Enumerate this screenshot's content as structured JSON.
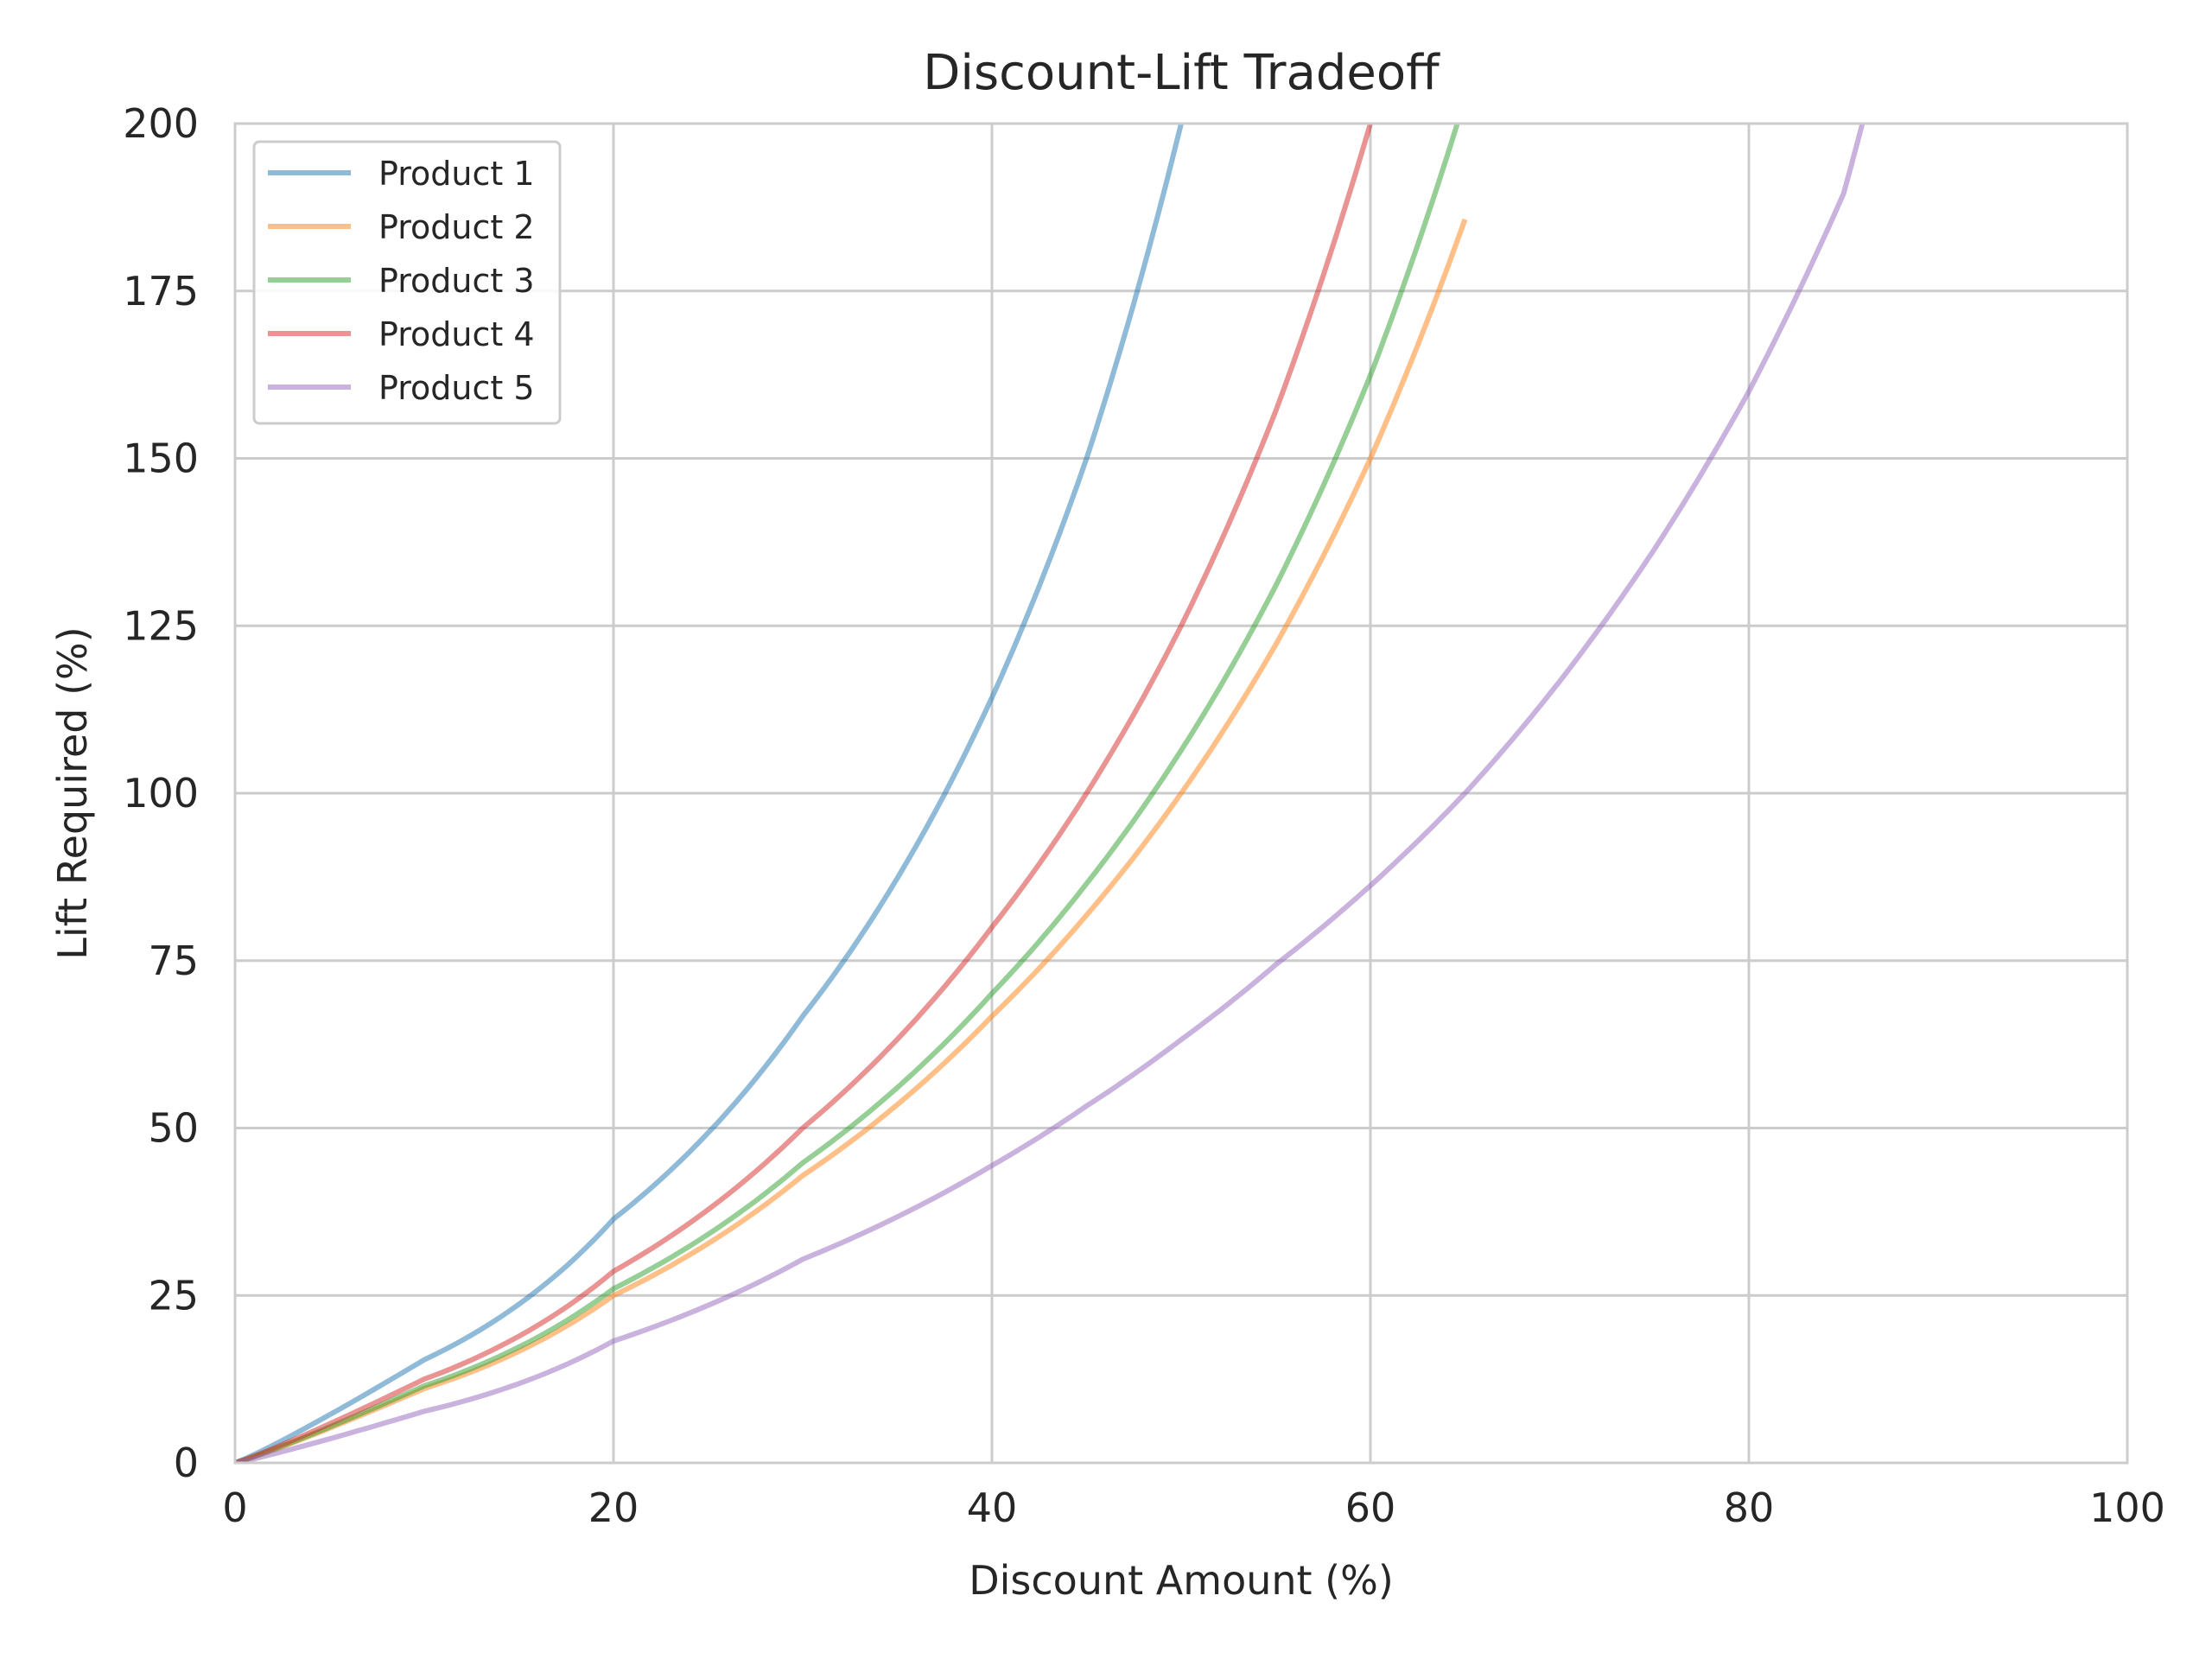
{
  "chart_data": {
    "type": "line",
    "title": "Discount-Lift Tradeoff",
    "xlabel": "Discount Amount (%)",
    "ylabel": "Lift Required (%)",
    "xlim": [
      0,
      100
    ],
    "ylim": [
      0,
      200
    ],
    "xticks": [
      0,
      20,
      40,
      60,
      80,
      100
    ],
    "yticks": [
      0,
      25,
      50,
      75,
      100,
      125,
      150,
      175,
      200
    ],
    "grid": true,
    "legend_position": "top-left",
    "x": [
      0,
      10,
      20,
      30,
      40,
      45,
      50,
      55,
      60,
      65,
      70,
      75,
      80,
      85,
      86
    ],
    "series": [
      {
        "name": "Product 1",
        "color": "#1f77b4",
        "values": [
          0,
          15.4,
          36.4,
          66.7,
          114.3,
          150.0,
          200.0,
          null,
          null,
          null,
          null,
          null,
          null,
          null,
          null
        ]
      },
      {
        "name": "Product 2",
        "color": "#ff7f0e",
        "values": [
          0,
          11.1,
          25.0,
          42.9,
          66.7,
          81.8,
          100.0,
          122.2,
          150.0,
          185.7,
          null,
          null,
          null,
          null,
          null
        ]
      },
      {
        "name": "Product 3",
        "color": "#2ca02c",
        "values": [
          0,
          11.5,
          26.0,
          44.8,
          70.1,
          86.5,
          106.4,
          131.0,
          162.4,
          203.7,
          null,
          null,
          null,
          null,
          null
        ]
      },
      {
        "name": "Product 4",
        "color": "#d62728",
        "values": [
          0,
          12.5,
          28.6,
          50.0,
          80.0,
          100.0,
          125.0,
          157.1,
          200.0,
          null,
          null,
          null,
          null,
          null,
          null
        ]
      },
      {
        "name": "Product 5",
        "color": "#9467bd",
        "values": [
          0,
          7.7,
          18.2,
          30.4,
          44.4,
          53.3,
          63.2,
          74.4,
          86.2,
          100.0,
          116.7,
          136.4,
          160.0,
          189.5,
          200.0
        ]
      }
    ]
  }
}
